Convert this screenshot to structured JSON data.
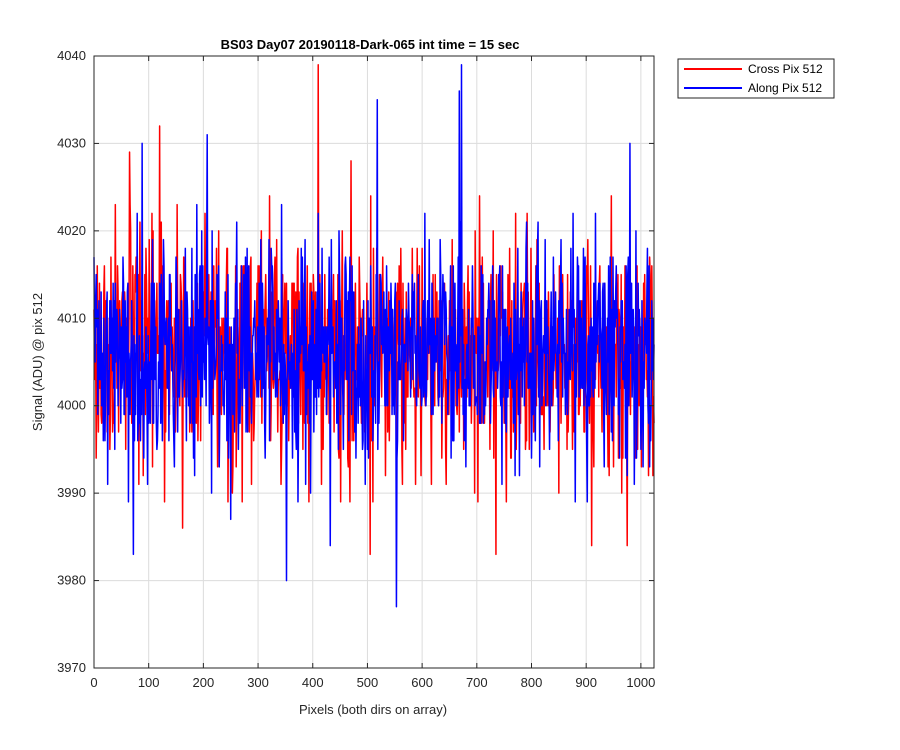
{
  "chart_data": {
    "type": "line",
    "title": "BS03 Day07 20190118-Dark-065 int time = 15 sec",
    "xlabel": "Pixels (both dirs on array)",
    "ylabel": "Signal (ADU) @ pix 512",
    "xlim": [
      0,
      1024
    ],
    "ylim": [
      3970,
      4040
    ],
    "xticks": [
      0,
      100,
      200,
      300,
      400,
      500,
      600,
      700,
      800,
      900,
      1000
    ],
    "yticks": [
      3970,
      3980,
      3990,
      4000,
      4010,
      4020,
      4030,
      4040
    ],
    "grid": true,
    "legend_position": "top-right, outside axes",
    "series": [
      {
        "name": "Cross Pix 512",
        "color": "#ff0000",
        "mean": 4006,
        "std": 6.5,
        "seed": 17,
        "peaks": [
          {
            "x": 410,
            "y": 4039
          },
          {
            "x": 120,
            "y": 4032
          },
          {
            "x": 65,
            "y": 4029
          },
          {
            "x": 470,
            "y": 4028
          },
          {
            "x": 705,
            "y": 4024
          },
          {
            "x": 505,
            "y": 3983
          },
          {
            "x": 735,
            "y": 3983
          },
          {
            "x": 1020,
            "y": 4016
          },
          {
            "x": 162,
            "y": 3986
          },
          {
            "x": 910,
            "y": 3984
          },
          {
            "x": 975,
            "y": 3984
          }
        ]
      },
      {
        "name": "Along Pix 512",
        "color": "#0000ff",
        "mean": 4006,
        "std": 6.5,
        "seed": 41,
        "peaks": [
          {
            "x": 672,
            "y": 4039
          },
          {
            "x": 668,
            "y": 4036
          },
          {
            "x": 518,
            "y": 4035
          },
          {
            "x": 207,
            "y": 4031
          },
          {
            "x": 980,
            "y": 4030
          },
          {
            "x": 88,
            "y": 4030
          },
          {
            "x": 553,
            "y": 3977
          },
          {
            "x": 352,
            "y": 3980
          },
          {
            "x": 72,
            "y": 3983
          },
          {
            "x": 432,
            "y": 3984
          },
          {
            "x": 250,
            "y": 3987
          }
        ]
      }
    ]
  }
}
